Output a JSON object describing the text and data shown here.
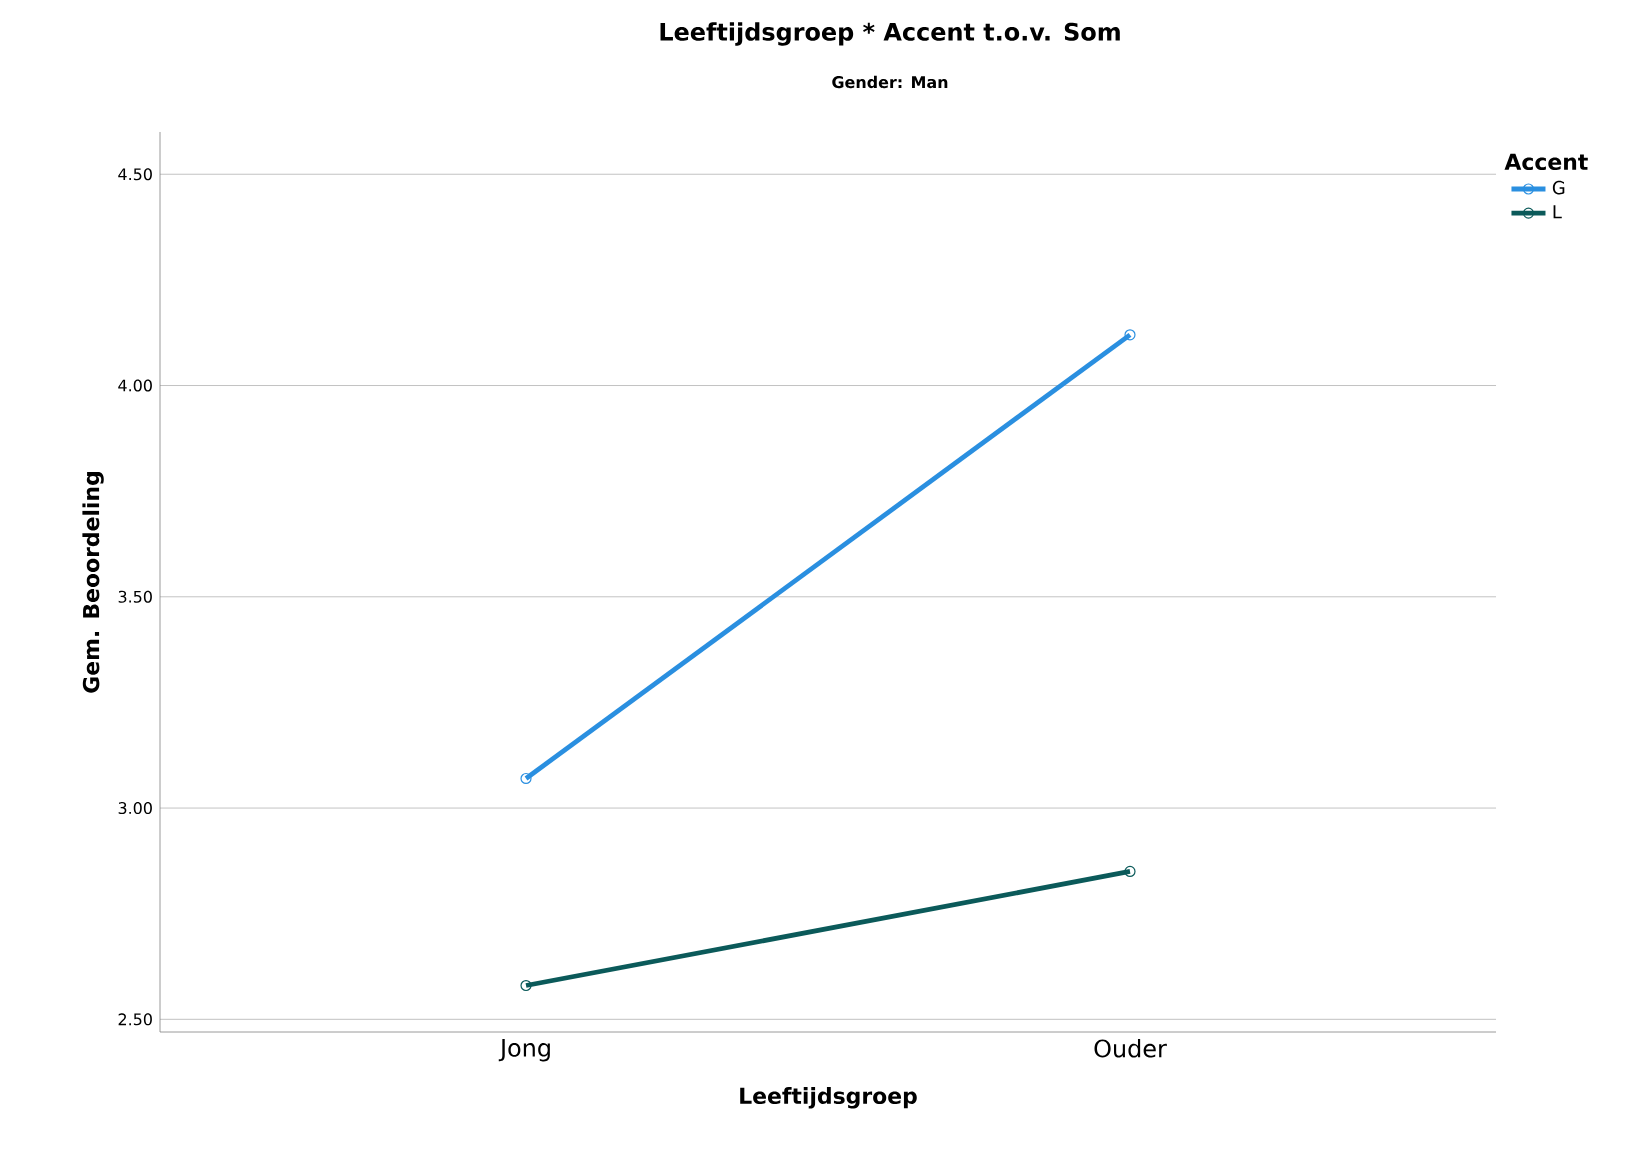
{
  "chart_data": {
    "type": "line",
    "title": "Leeftijdsgroep * Accent t.o.v. Som",
    "subtitle": "Gender: Man",
    "xlabel": "Leeftijdsgroep",
    "ylabel": "Gem. Beoordeling",
    "legend_title": "Accent",
    "categories": [
      "Jong",
      "Ouder"
    ],
    "series": [
      {
        "name": "G",
        "color": "#2a8fe0",
        "values": [
          3.07,
          4.12
        ]
      },
      {
        "name": "L",
        "color": "#0b5a5a",
        "values": [
          2.58,
          2.85
        ]
      }
    ],
    "ylim": [
      2.47,
      4.6
    ],
    "yticks": [
      {
        "value": 2.5,
        "label": "2.50"
      },
      {
        "value": 3.0,
        "label": "3.00"
      },
      {
        "value": 3.5,
        "label": "3.50"
      },
      {
        "value": 4.0,
        "label": "4.00"
      },
      {
        "value": 4.5,
        "label": "4.50"
      }
    ],
    "grid": "y",
    "legend": "top right",
    "marker": "circle",
    "line_style": "solid"
  }
}
